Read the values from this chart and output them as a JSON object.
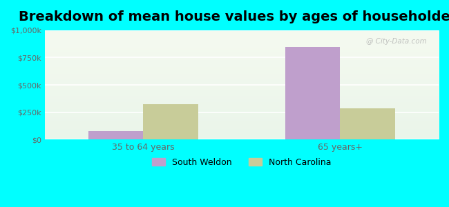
{
  "title": "Breakdown of mean house values by ages of householders",
  "categories": [
    "35 to 64 years",
    "65 years+"
  ],
  "series": [
    {
      "name": "South Weldon",
      "values": [
        75000,
        850000
      ],
      "color": "#bf9fcc"
    },
    {
      "name": "North Carolina",
      "values": [
        325000,
        285000
      ],
      "color": "#c8cc99"
    }
  ],
  "ylim": [
    0,
    1000000
  ],
  "yticks": [
    0,
    250000,
    500000,
    750000,
    1000000
  ],
  "ytick_labels": [
    "$0",
    "$250k",
    "$500k",
    "$750k",
    "$1,000k"
  ],
  "background_color": "#00ffff",
  "gradient_top": "#f5faf0",
  "gradient_bottom": "#eaf5ea",
  "title_fontsize": 14,
  "legend_fontsize": 9,
  "bar_width": 0.28,
  "watermark": "@ City-Data.com"
}
